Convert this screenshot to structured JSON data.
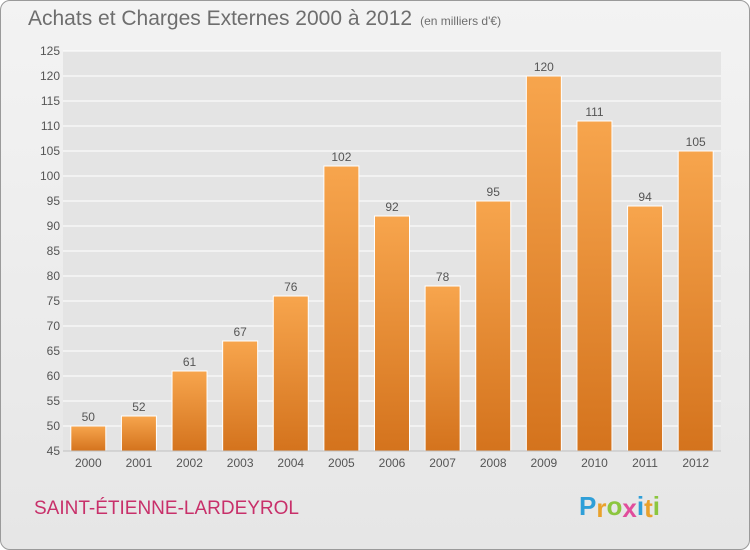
{
  "header": {
    "title": "Achats et Charges Externes 2000 à 2012",
    "subtitle": "(en milliers d'€)"
  },
  "footer": {
    "commune": "SAINT-ÉTIENNE-LARDEYROL",
    "logo_letters": [
      "P",
      "r",
      "o",
      "x",
      "i",
      "t",
      "i"
    ],
    "logo_colors": [
      "#2f9fd8",
      "#e9a12b",
      "#8cc63f",
      "#e14d9c",
      "#2f9fd8",
      "#e9a12b",
      "#8cc63f"
    ]
  },
  "colors": {
    "bar": "#f29a3e",
    "axis_text": "#555555",
    "grid": "#ffffff",
    "plot_bg": "#e4e4e4"
  },
  "chart_data": {
    "type": "bar",
    "categories": [
      "2000",
      "2001",
      "2002",
      "2003",
      "2004",
      "2005",
      "2006",
      "2007",
      "2008",
      "2009",
      "2010",
      "2011",
      "2012"
    ],
    "values": [
      50,
      52,
      61,
      67,
      76,
      102,
      92,
      78,
      95,
      120,
      111,
      94,
      105
    ],
    "ylim": [
      45,
      125
    ],
    "yticks": [
      45,
      50,
      55,
      60,
      65,
      70,
      75,
      80,
      85,
      90,
      95,
      100,
      105,
      110,
      115,
      120,
      125
    ],
    "grid": true,
    "data_labels": true
  }
}
